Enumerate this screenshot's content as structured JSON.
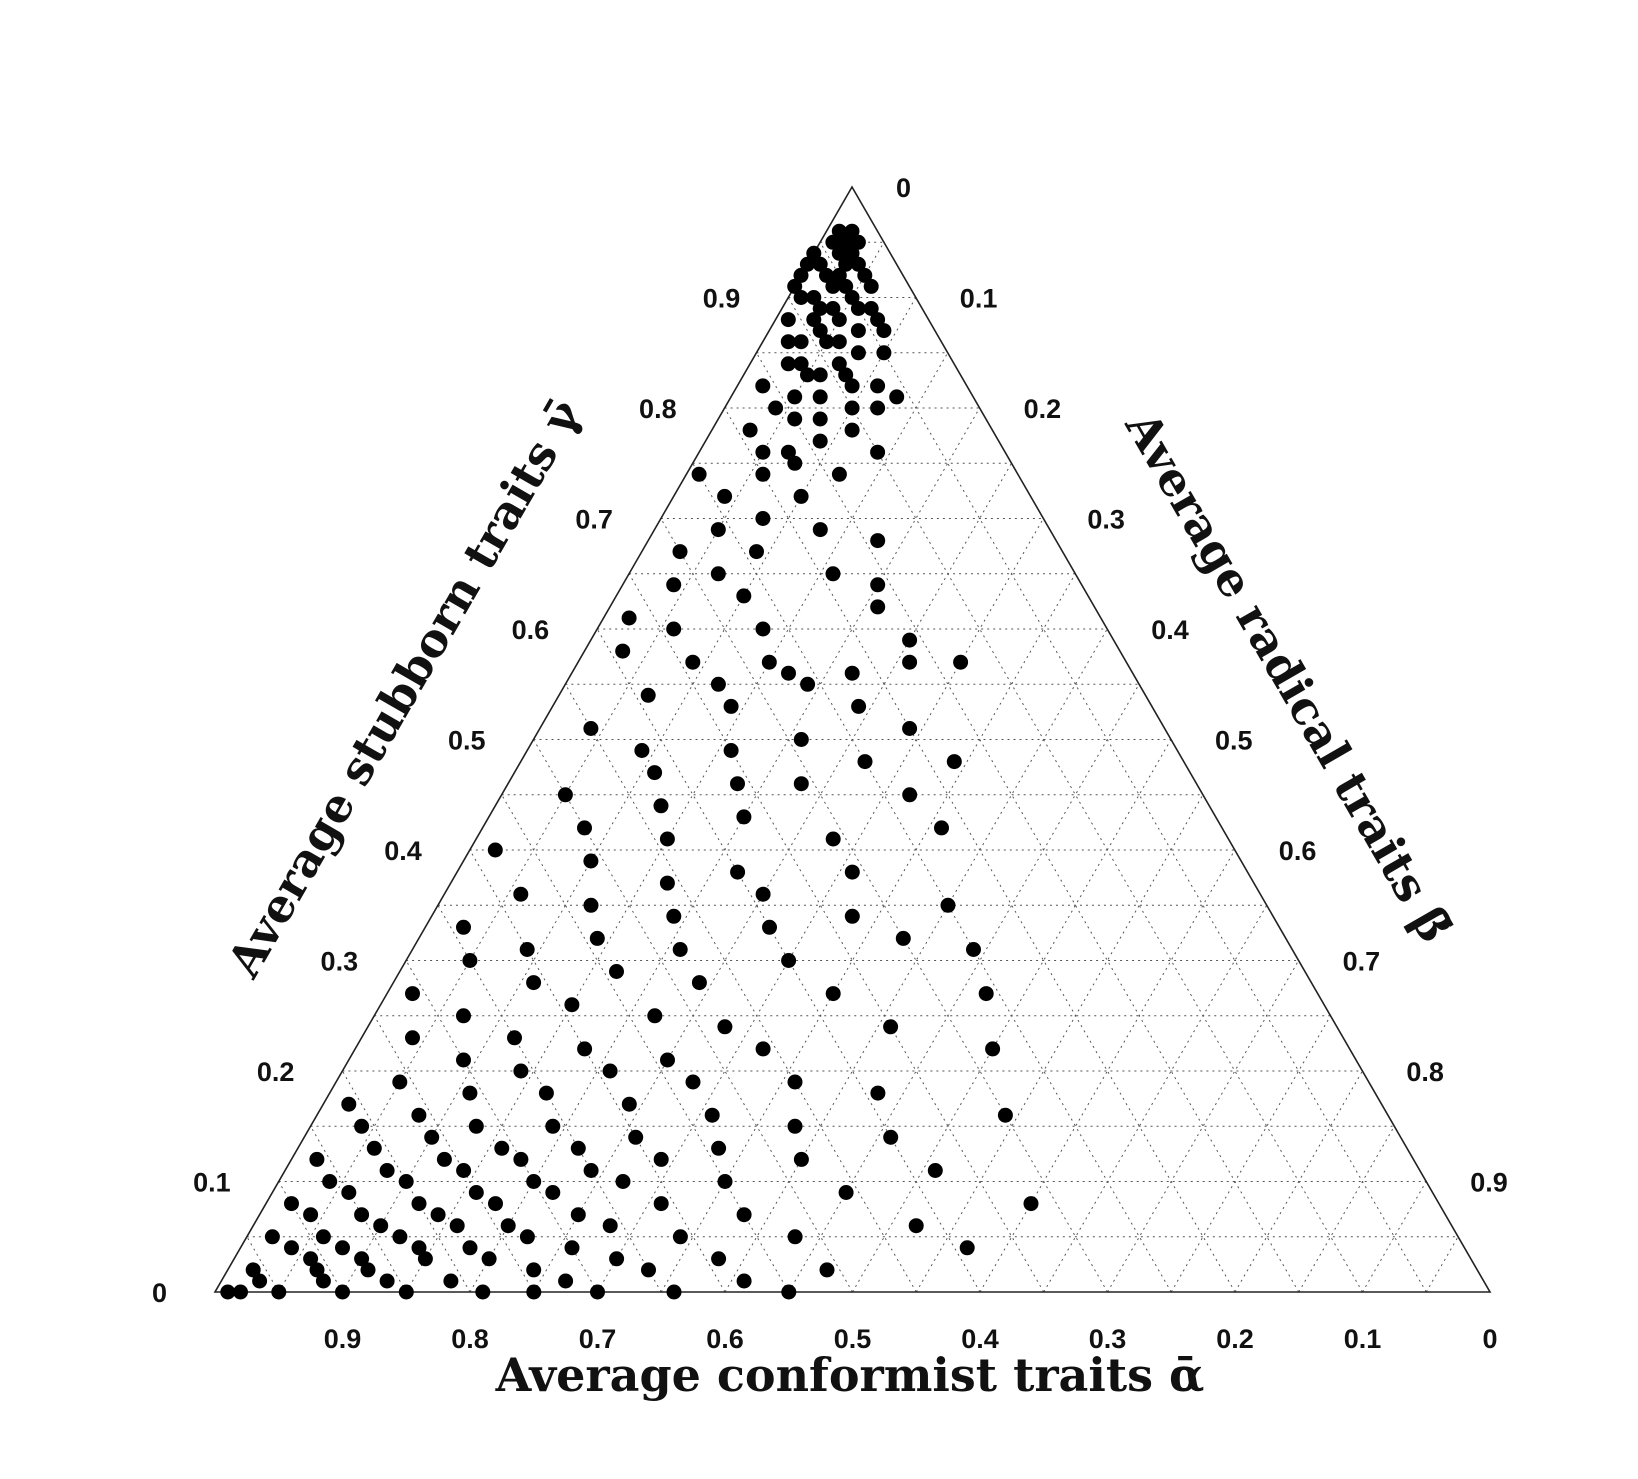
{
  "chart_data": {
    "type": "scatter",
    "subtype": "ternary",
    "grid": true,
    "axes": {
      "bottom": {
        "label": "Average conformist traits ᾱ",
        "ticks": [
          "0.9",
          "0.8",
          "0.7",
          "0.6",
          "0.5",
          "0.4",
          "0.3",
          "0.2",
          "0.1",
          "0"
        ]
      },
      "left": {
        "label": "Average stubborn traits γ̄",
        "ticks": [
          "0",
          "0.1",
          "0.2",
          "0.3",
          "0.4",
          "0.5",
          "0.6",
          "0.7",
          "0.8",
          "0.9"
        ]
      },
      "right": {
        "label": "Average radical traits β̄",
        "ticks": [
          "0",
          "0.1",
          "0.2",
          "0.3",
          "0.4",
          "0.5",
          "0.6",
          "0.7",
          "0.8",
          "0.9"
        ]
      }
    },
    "point_order": [
      "beta",
      "gamma"
    ],
    "points": [
      [
        0.01,
        0.96
      ],
      [
        0.02,
        0.96
      ],
      [
        0.01,
        0.95
      ],
      [
        0.02,
        0.95
      ],
      [
        0.03,
        0.95
      ],
      [
        0.0,
        0.94
      ],
      [
        0.02,
        0.94
      ],
      [
        0.03,
        0.94
      ],
      [
        0.04,
        0.93
      ],
      [
        0.03,
        0.93
      ],
      [
        0.01,
        0.93
      ],
      [
        0.0,
        0.93
      ],
      [
        0.05,
        0.92
      ],
      [
        0.03,
        0.92
      ],
      [
        0.02,
        0.92
      ],
      [
        0.0,
        0.92
      ],
      [
        0.0,
        0.91
      ],
      [
        0.04,
        0.91
      ],
      [
        0.06,
        0.91
      ],
      [
        0.03,
        0.91
      ],
      [
        0.05,
        0.9
      ],
      [
        0.01,
        0.9
      ],
      [
        0.02,
        0.9
      ],
      [
        0.03,
        0.89
      ],
      [
        0.04,
        0.89
      ],
      [
        0.06,
        0.89
      ],
      [
        0.07,
        0.89
      ],
      [
        0.08,
        0.88
      ],
      [
        0.05,
        0.88
      ],
      [
        0.03,
        0.88
      ],
      [
        0.01,
        0.88
      ],
      [
        0.04,
        0.87
      ],
      [
        0.07,
        0.87
      ],
      [
        0.09,
        0.87
      ],
      [
        0.06,
        0.86
      ],
      [
        0.05,
        0.86
      ],
      [
        0.03,
        0.86
      ],
      [
        0.02,
        0.86
      ],
      [
        0.08,
        0.85
      ],
      [
        0.1,
        0.85
      ],
      [
        0.07,
        0.84
      ],
      [
        0.04,
        0.84
      ],
      [
        0.03,
        0.84
      ],
      [
        0.05,
        0.83
      ],
      [
        0.06,
        0.83
      ],
      [
        0.08,
        0.83
      ],
      [
        0.09,
        0.82
      ],
      [
        0.11,
        0.82
      ],
      [
        0.13,
        0.81
      ],
      [
        0.07,
        0.81
      ],
      [
        0.05,
        0.81
      ],
      [
        0.02,
        0.82
      ],
      [
        0.04,
        0.8
      ],
      [
        0.1,
        0.8
      ],
      [
        0.12,
        0.8
      ],
      [
        0.08,
        0.79
      ],
      [
        0.06,
        0.79
      ],
      [
        0.03,
        0.78
      ],
      [
        0.11,
        0.78
      ],
      [
        0.09,
        0.77
      ],
      [
        0.05,
        0.76
      ],
      [
        0.07,
        0.76
      ],
      [
        0.14,
        0.76
      ],
      [
        0.08,
        0.75
      ],
      [
        0.01,
        0.74
      ],
      [
        0.06,
        0.74
      ],
      [
        0.12,
        0.74
      ],
      [
        0.04,
        0.72
      ],
      [
        0.1,
        0.72
      ],
      [
        0.08,
        0.7
      ],
      [
        0.05,
        0.69
      ],
      [
        0.13,
        0.69
      ],
      [
        0.03,
        0.67
      ],
      [
        0.09,
        0.67
      ],
      [
        0.18,
        0.68
      ],
      [
        0.07,
        0.65
      ],
      [
        0.16,
        0.65
      ],
      [
        0.2,
        0.64
      ],
      [
        0.04,
        0.64
      ],
      [
        0.1,
        0.63
      ],
      [
        0.02,
        0.61
      ],
      [
        0.06,
        0.6
      ],
      [
        0.13,
        0.6
      ],
      [
        0.21,
        0.62
      ],
      [
        0.25,
        0.59
      ],
      [
        0.03,
        0.58
      ],
      [
        0.09,
        0.57
      ],
      [
        0.15,
        0.57
      ],
      [
        0.17,
        0.56
      ],
      [
        0.22,
        0.56
      ],
      [
        0.26,
        0.57
      ],
      [
        0.3,
        0.57
      ],
      [
        0.12,
        0.55
      ],
      [
        0.19,
        0.55
      ],
      [
        0.07,
        0.54
      ],
      [
        0.14,
        0.53
      ],
      [
        0.24,
        0.53
      ],
      [
        0.29,
        0.51
      ],
      [
        0.04,
        0.51
      ],
      [
        0.09,
        0.49
      ],
      [
        0.16,
        0.49
      ],
      [
        0.21,
        0.5
      ],
      [
        0.27,
        0.48
      ],
      [
        0.34,
        0.48
      ],
      [
        0.11,
        0.47
      ],
      [
        0.18,
        0.46
      ],
      [
        0.23,
        0.46
      ],
      [
        0.32,
        0.45
      ],
      [
        0.05,
        0.45
      ],
      [
        0.13,
        0.44
      ],
      [
        0.2,
        0.43
      ],
      [
        0.08,
        0.42
      ],
      [
        0.15,
        0.41
      ],
      [
        0.28,
        0.41
      ],
      [
        0.36,
        0.42
      ],
      [
        0.02,
        0.4
      ],
      [
        0.1,
        0.39
      ],
      [
        0.22,
        0.38
      ],
      [
        0.31,
        0.38
      ],
      [
        0.17,
        0.37
      ],
      [
        0.25,
        0.36
      ],
      [
        0.06,
        0.36
      ],
      [
        0.4,
        0.35
      ],
      [
        0.12,
        0.35
      ],
      [
        0.19,
        0.34
      ],
      [
        0.33,
        0.34
      ],
      [
        0.03,
        0.33
      ],
      [
        0.27,
        0.33
      ],
      [
        0.14,
        0.32
      ],
      [
        0.38,
        0.32
      ],
      [
        0.09,
        0.31
      ],
      [
        0.21,
        0.31
      ],
      [
        0.44,
        0.31
      ],
      [
        0.05,
        0.3
      ],
      [
        0.3,
        0.3
      ],
      [
        0.17,
        0.29
      ],
      [
        0.24,
        0.28
      ],
      [
        0.11,
        0.28
      ],
      [
        0.35,
        0.27
      ],
      [
        0.02,
        0.27
      ],
      [
        0.47,
        0.27
      ],
      [
        0.15,
        0.26
      ],
      [
        0.07,
        0.25
      ],
      [
        0.22,
        0.25
      ],
      [
        0.28,
        0.24
      ],
      [
        0.41,
        0.24
      ],
      [
        0.12,
        0.23
      ],
      [
        0.04,
        0.23
      ],
      [
        0.18,
        0.22
      ],
      [
        0.32,
        0.22
      ],
      [
        0.25,
        0.21
      ],
      [
        0.09,
        0.21
      ],
      [
        0.5,
        0.22
      ],
      [
        0.14,
        0.2
      ],
      [
        0.21,
        0.2
      ],
      [
        0.36,
        0.19
      ],
      [
        0.05,
        0.19
      ],
      [
        0.28,
        0.19
      ],
      [
        0.11,
        0.18
      ],
      [
        0.17,
        0.18
      ],
      [
        0.43,
        0.18
      ],
      [
        0.02,
        0.17
      ],
      [
        0.24,
        0.17
      ],
      [
        0.08,
        0.16
      ],
      [
        0.31,
        0.16
      ],
      [
        0.54,
        0.16
      ],
      [
        0.13,
        0.15
      ],
      [
        0.19,
        0.15
      ],
      [
        0.38,
        0.15
      ],
      [
        0.04,
        0.15
      ],
      [
        0.26,
        0.14
      ],
      [
        0.1,
        0.14
      ],
      [
        0.46,
        0.14
      ],
      [
        0.16,
        0.13
      ],
      [
        0.22,
        0.13
      ],
      [
        0.06,
        0.13
      ],
      [
        0.33,
        0.13
      ],
      [
        0.12,
        0.12
      ],
      [
        0.29,
        0.12
      ],
      [
        0.02,
        0.12
      ],
      [
        0.18,
        0.12
      ],
      [
        0.4,
        0.12
      ],
      [
        0.08,
        0.11
      ],
      [
        0.24,
        0.11
      ],
      [
        0.14,
        0.11
      ],
      [
        0.51,
        0.11
      ],
      [
        0.04,
        0.1
      ],
      [
        0.2,
        0.1
      ],
      [
        0.35,
        0.1
      ],
      [
        0.1,
        0.1
      ],
      [
        0.27,
        0.1
      ],
      [
        0.16,
        0.09
      ],
      [
        0.06,
        0.09
      ],
      [
        0.45,
        0.09
      ],
      [
        0.22,
        0.09
      ],
      [
        0.12,
        0.08
      ],
      [
        0.31,
        0.08
      ],
      [
        0.02,
        0.08
      ],
      [
        0.18,
        0.08
      ],
      [
        0.6,
        0.08
      ],
      [
        0.08,
        0.07
      ],
      [
        0.25,
        0.07
      ],
      [
        0.38,
        0.07
      ],
      [
        0.14,
        0.07
      ],
      [
        0.04,
        0.07
      ],
      [
        0.2,
        0.06
      ],
      [
        0.1,
        0.06
      ],
      [
        0.52,
        0.06
      ],
      [
        0.28,
        0.06
      ],
      [
        0.16,
        0.06
      ],
      [
        0.06,
        0.05
      ],
      [
        0.34,
        0.05
      ],
      [
        0.12,
        0.05
      ],
      [
        0.22,
        0.05
      ],
      [
        0.02,
        0.05
      ],
      [
        0.43,
        0.05
      ],
      [
        0.08,
        0.04
      ],
      [
        0.18,
        0.04
      ],
      [
        0.26,
        0.04
      ],
      [
        0.14,
        0.04
      ],
      [
        0.04,
        0.04
      ],
      [
        0.57,
        0.04
      ],
      [
        0.1,
        0.03
      ],
      [
        0.3,
        0.03
      ],
      [
        0.2,
        0.03
      ],
      [
        0.06,
        0.03
      ],
      [
        0.38,
        0.03
      ],
      [
        0.15,
        0.03
      ],
      [
        0.02,
        0.02
      ],
      [
        0.24,
        0.02
      ],
      [
        0.11,
        0.02
      ],
      [
        0.47,
        0.02
      ],
      [
        0.07,
        0.02
      ],
      [
        0.33,
        0.02
      ],
      [
        0.18,
        0.01
      ],
      [
        0.03,
        0.01
      ],
      [
        0.13,
        0.01
      ],
      [
        0.27,
        0.01
      ],
      [
        0.08,
        0.01
      ],
      [
        0.41,
        0.01
      ],
      [
        0.05,
        0.0
      ],
      [
        0.21,
        0.0
      ],
      [
        0.1,
        0.0
      ],
      [
        0.36,
        0.0
      ],
      [
        0.15,
        0.0
      ],
      [
        0.01,
        0.0
      ],
      [
        0.3,
        0.0
      ],
      [
        0.45,
        0.0
      ],
      [
        0.25,
        0.0
      ],
      [
        0.02,
        0.0
      ]
    ]
  }
}
